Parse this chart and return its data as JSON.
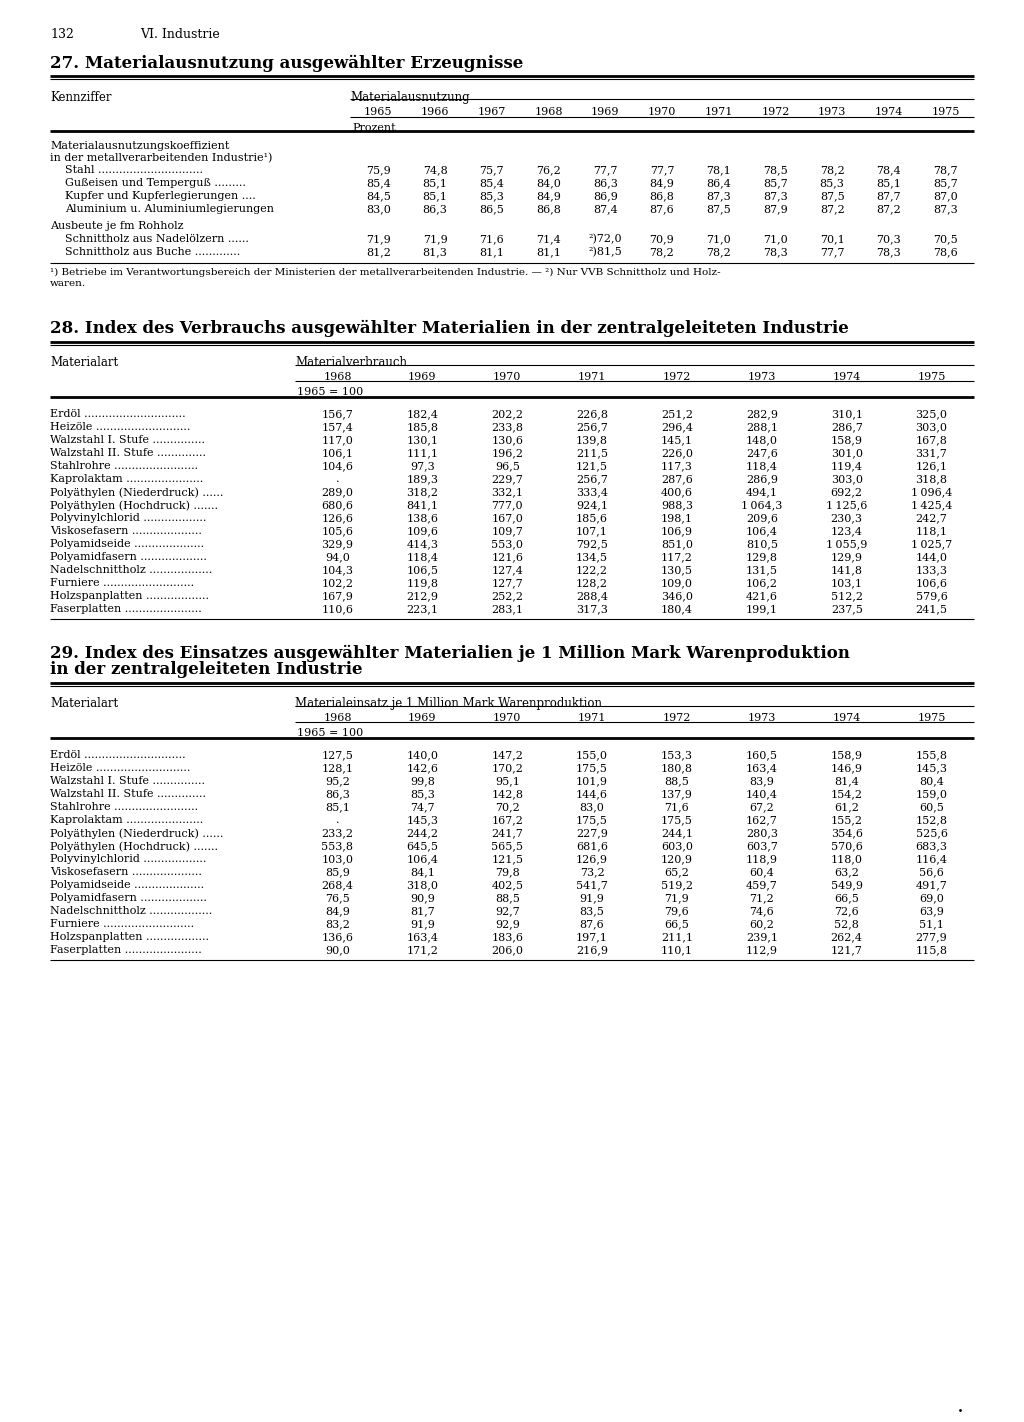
{
  "page_num": "132",
  "chapter": "VI. Industrie",
  "background": "#ffffff",
  "table27": {
    "title": "27. Materialausnutzung ausgewählter Erzeugnisse",
    "col_header_left": "Kennziffer",
    "col_header_right": "Materialausnutzung",
    "years": [
      "1965",
      "1966",
      "1967",
      "1968",
      "1969",
      "1970",
      "1971",
      "1972",
      "1973",
      "1974",
      "1975"
    ],
    "unit_row": "Prozent",
    "section1_header": [
      "Materialausnutzungskoeffizient",
      "in der metallverarbeitenden Industrie¹)"
    ],
    "section1_rows": [
      [
        "Stahl ..............................",
        "75,9",
        "74,8",
        "75,7",
        "76,2",
        "77,7",
        "77,7",
        "78,1",
        "78,5",
        "78,2",
        "78,4",
        "78,7"
      ],
      [
        "Gußeisen und Temperguß .........",
        "85,4",
        "85,1",
        "85,4",
        "84,0",
        "86,3",
        "84,9",
        "86,4",
        "85,7",
        "85,3",
        "85,1",
        "85,7"
      ],
      [
        "Kupfer und Kupferlegierungen ....",
        "84,5",
        "85,1",
        "85,3",
        "84,9",
        "86,9",
        "86,8",
        "87,3",
        "87,3",
        "87,5",
        "87,7",
        "87,0"
      ],
      [
        "Aluminium u. Aluminiumlegierungen",
        "83,0",
        "86,3",
        "86,5",
        "86,8",
        "87,4",
        "87,6",
        "87,5",
        "87,9",
        "87,2",
        "87,2",
        "87,3"
      ]
    ],
    "section2_header": "Ausbeute je fm Rohholz",
    "section2_rows": [
      [
        "Schnittholz aus Nadelölzern ......",
        "71,9",
        "71,9",
        "71,6",
        "71,4",
        "²)72,0",
        "70,9",
        "71,0",
        "71,0",
        "70,1",
        "70,3",
        "70,5"
      ],
      [
        "Schnittholz aus Buche .............",
        "81,2",
        "81,3",
        "81,1",
        "81,1",
        "²)81,5",
        "78,2",
        "78,2",
        "78,3",
        "77,7",
        "78,3",
        "78,6"
      ]
    ],
    "footnote_line1": "¹) Betriebe im Verantwortungsbereich der Ministerien der metallverarbeitenden Industrie. — ²) Nur VVB Schnittholz und Holz-",
    "footnote_line2": "waren."
  },
  "table28": {
    "title": "28. Index des Verbrauchs ausgewählter Materialien in der zentralgeleiteten Industrie",
    "col_header_left": "Materialart",
    "col_header_right": "Materialverbrauch",
    "years": [
      "1968",
      "1969",
      "1970",
      "1971",
      "1972",
      "1973",
      "1974",
      "1975"
    ],
    "unit_row": "1965 = 100",
    "rows": [
      [
        "Erdöl .............................",
        "156,7",
        "182,4",
        "202,2",
        "226,8",
        "251,2",
        "282,9",
        "310,1",
        "325,0"
      ],
      [
        "Heizöle ...........................",
        "157,4",
        "185,8",
        "233,8",
        "256,7",
        "296,4",
        "288,1",
        "286,7",
        "303,0"
      ],
      [
        "Walzstahl I. Stufe ...............",
        "117,0",
        "130,1",
        "130,6",
        "139,8",
        "145,1",
        "148,0",
        "158,9",
        "167,8"
      ],
      [
        "Walzstahl II. Stufe ..............",
        "106,1",
        "111,1",
        "196,2",
        "211,5",
        "226,0",
        "247,6",
        "301,0",
        "331,7"
      ],
      [
        "Stahlrohre ........................",
        "104,6",
        "97,3",
        "96,5",
        "121,5",
        "117,3",
        "118,4",
        "119,4",
        "126,1"
      ],
      [
        "Kaprolaktam ......................",
        ".",
        "189,3",
        "229,7",
        "256,7",
        "287,6",
        "286,9",
        "303,0",
        "318,8"
      ],
      [
        "Polyäthylen (Niederdruck) ......",
        "289,0",
        "318,2",
        "332,1",
        "333,4",
        "400,6",
        "494,1",
        "692,2",
        "1 096,4"
      ],
      [
        "Polyäthylen (Hochdruck) .......",
        "680,6",
        "841,1",
        "777,0",
        "924,1",
        "988,3",
        "1 064,3",
        "1 125,6",
        "1 425,4"
      ],
      [
        "Polyvinylchlorid ..................",
        "126,6",
        "138,6",
        "167,0",
        "185,6",
        "198,1",
        "209,6",
        "230,3",
        "242,7"
      ],
      [
        "Viskosefasern ....................",
        "105,6",
        "109,6",
        "109,7",
        "107,1",
        "106,9",
        "106,4",
        "123,4",
        "118,1"
      ],
      [
        "Polyamidseide ....................",
        "329,9",
        "414,3",
        "553,0",
        "792,5",
        "851,0",
        "810,5",
        "1 055,9",
        "1 025,7"
      ],
      [
        "Polyamidfasern ...................",
        "94,0",
        "118,4",
        "121,6",
        "134,5",
        "117,2",
        "129,8",
        "129,9",
        "144,0"
      ],
      [
        "Nadelschnittholz ..................",
        "104,3",
        "106,5",
        "127,4",
        "122,2",
        "130,5",
        "131,5",
        "141,8",
        "133,3"
      ],
      [
        "Furniere ..........................",
        "102,2",
        "119,8",
        "127,7",
        "128,2",
        "109,0",
        "106,2",
        "103,1",
        "106,6"
      ],
      [
        "Holzspanplatten ..................",
        "167,9",
        "212,9",
        "252,2",
        "288,4",
        "346,0",
        "421,6",
        "512,2",
        "579,6"
      ],
      [
        "Faserplatten ......................",
        "110,6",
        "223,1",
        "283,1",
        "317,3",
        "180,4",
        "199,1",
        "237,5",
        "241,5"
      ]
    ]
  },
  "table29": {
    "title_line1": "29. Index des Einsatzes ausgewählter Materialien je 1 Million Mark Warenproduktion",
    "title_line2": "in der zentralgeleiteten Industrie",
    "col_header_left": "Materialart",
    "col_header_right": "Materialeinsatz je 1 Million Mark Warenproduktion",
    "years": [
      "1968",
      "1969",
      "1970",
      "1971",
      "1972",
      "1973",
      "1974",
      "1975"
    ],
    "unit_row": "1965 = 100",
    "rows": [
      [
        "Erdöl .............................",
        "127,5",
        "140,0",
        "147,2",
        "155,0",
        "153,3",
        "160,5",
        "158,9",
        "155,8"
      ],
      [
        "Heizöle ...........................",
        "128,1",
        "142,6",
        "170,2",
        "175,5",
        "180,8",
        "163,4",
        "146,9",
        "145,3"
      ],
      [
        "Walzstahl I. Stufe ...............",
        "95,2",
        "99,8",
        "95,1",
        "101,9",
        "88,5",
        "83,9",
        "81,4",
        "80,4"
      ],
      [
        "Walzstahl II. Stufe ..............",
        "86,3",
        "85,3",
        "142,8",
        "144,6",
        "137,9",
        "140,4",
        "154,2",
        "159,0"
      ],
      [
        "Stahlrohre ........................",
        "85,1",
        "74,7",
        "70,2",
        "83,0",
        "71,6",
        "67,2",
        "61,2",
        "60,5"
      ],
      [
        "Kaprolaktam ......................",
        ".",
        "145,3",
        "167,2",
        "175,5",
        "175,5",
        "162,7",
        "155,2",
        "152,8"
      ],
      [
        "Polyäthylen (Niederdruck) ......",
        "233,2",
        "244,2",
        "241,7",
        "227,9",
        "244,1",
        "280,3",
        "354,6",
        "525,6"
      ],
      [
        "Polyäthylen (Hochdruck) .......",
        "553,8",
        "645,5",
        "565,5",
        "681,6",
        "603,0",
        "603,7",
        "570,6",
        "683,3"
      ],
      [
        "Polyvinylchlorid ..................",
        "103,0",
        "106,4",
        "121,5",
        "126,9",
        "120,9",
        "118,9",
        "118,0",
        "116,4"
      ],
      [
        "Viskosefasern ....................",
        "85,9",
        "84,1",
        "79,8",
        "73,2",
        "65,2",
        "60,4",
        "63,2",
        "56,6"
      ],
      [
        "Polyamidseide ....................",
        "268,4",
        "318,0",
        "402,5",
        "541,7",
        "519,2",
        "459,7",
        "549,9",
        "491,7"
      ],
      [
        "Polyamidfasern ...................",
        "76,5",
        "90,9",
        "88,5",
        "91,9",
        "71,9",
        "71,2",
        "66,5",
        "69,0"
      ],
      [
        "Nadelschnittholz ..................",
        "84,9",
        "81,7",
        "92,7",
        "83,5",
        "79,6",
        "74,6",
        "72,6",
        "63,9"
      ],
      [
        "Furniere ..........................",
        "83,2",
        "91,9",
        "92,9",
        "87,6",
        "66,5",
        "60,2",
        "52,8",
        "51,1"
      ],
      [
        "Holzspanplatten ..................",
        "136,6",
        "163,4",
        "183,6",
        "197,1",
        "211,1",
        "239,1",
        "262,4",
        "277,9"
      ],
      [
        "Faserplatten ......................",
        "90,0",
        "171,2",
        "206,0",
        "216,9",
        "110,1",
        "112,9",
        "121,7",
        "115,8"
      ]
    ]
  }
}
